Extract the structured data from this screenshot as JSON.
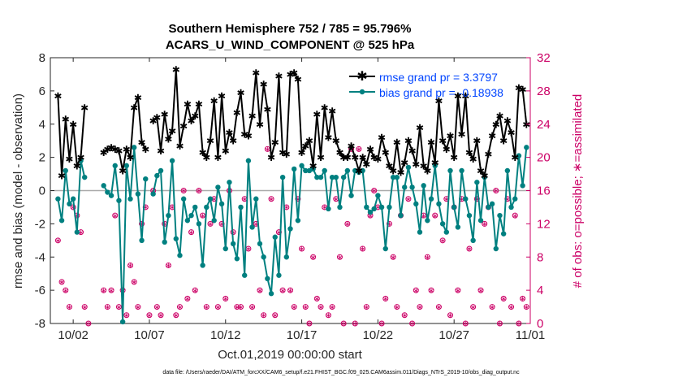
{
  "chart_data": {
    "type": "line",
    "title_line1": "Southern Hemisphere 752 / 785 = 95.796%",
    "title_line2": "ACARS_U_WIND_COMPONENT @ 525 hPa",
    "xlabel": "Oct.01,2019 00:00:00 start",
    "ylabel": "rmse and bias (model - observation)",
    "ylabel_right": "# of obs: o=possible; ∗=assimilated",
    "footnote": "data file: /Users/raeder/DAI/ATM_forcXX/CAM6_setup/f.e21.FHIST_BGC.f09_025.CAM6assim.011/Diags_NTrS_2019-10/obs_diag_output.nc",
    "xlim": [
      0.5,
      32
    ],
    "ylim": [
      -8,
      8
    ],
    "ylim_right": [
      0,
      32
    ],
    "x_ticks": [
      {
        "value": 2,
        "label": "10/02"
      },
      {
        "value": 7,
        "label": "10/07"
      },
      {
        "value": 12,
        "label": "10/12"
      },
      {
        "value": 17,
        "label": "10/17"
      },
      {
        "value": 22,
        "label": "10/22"
      },
      {
        "value": 27,
        "label": "10/27"
      },
      {
        "value": 32,
        "label": "11/01"
      }
    ],
    "y_ticks": [
      -8,
      -6,
      -4,
      -2,
      0,
      2,
      4,
      6,
      8
    ],
    "y_ticks_right": [
      0,
      4,
      8,
      12,
      16,
      20,
      24,
      28,
      32
    ],
    "colors": {
      "rmse": "#000000",
      "bias": "#008080",
      "obs": "#cc0066",
      "zero": "#aaaaaa",
      "legend_text": "#0044ff"
    },
    "series": [
      {
        "name": "rmse",
        "legend": "rmse grand pr = 3.3797",
        "x": [
          1.0,
          1.25,
          1.5,
          1.75,
          2.0,
          2.25,
          2.5,
          2.75,
          4.0,
          4.25,
          4.5,
          4.75,
          5.0,
          5.25,
          5.5,
          5.75,
          6.0,
          6.25,
          6.5,
          6.75,
          7.25,
          7.5,
          7.75,
          8.0,
          8.25,
          8.5,
          8.75,
          9.0,
          9.25,
          9.5,
          9.75,
          10.0,
          10.25,
          10.5,
          10.75,
          11.0,
          11.25,
          11.5,
          11.75,
          12.0,
          12.25,
          12.5,
          12.75,
          13.0,
          13.25,
          13.5,
          13.75,
          14.0,
          14.25,
          14.5,
          14.75,
          15.0,
          15.25,
          15.5,
          15.75,
          16.0,
          16.25,
          16.5,
          16.75,
          17.0,
          17.25,
          17.5,
          17.75,
          18.0,
          18.25,
          18.5,
          18.75,
          19.0,
          19.25,
          19.5,
          19.75,
          20.0,
          20.25,
          20.5,
          20.75,
          21.0,
          21.25,
          21.5,
          21.75,
          22.0,
          22.25,
          22.5,
          22.75,
          23.0,
          23.25,
          23.5,
          23.75,
          24.0,
          24.25,
          24.5,
          24.75,
          25.0,
          25.25,
          25.5,
          25.75,
          26.0,
          26.25,
          26.5,
          26.75,
          27.0,
          27.25,
          27.5,
          27.75,
          28.0,
          28.25,
          28.5,
          28.75,
          29.0,
          29.25,
          29.5,
          29.75,
          30.0,
          30.25,
          30.5,
          30.75,
          31.0,
          31.25,
          31.5,
          31.75
        ],
        "y": [
          5.7,
          0.9,
          4.3,
          1.9,
          4.0,
          1.5,
          2.0,
          5.0,
          2.3,
          2.5,
          2.6,
          2.5,
          2.4,
          1.2,
          2.5,
          2.0,
          5.0,
          5.6,
          2.9,
          2.5,
          4.2,
          4.4,
          2.4,
          4.6,
          3.1,
          3.6,
          7.3,
          2.7,
          3.9,
          5.2,
          4.2,
          4.5,
          5.2,
          2.3,
          2.0,
          3.0,
          5.4,
          2.0,
          5.7,
          2.4,
          3.5,
          3.0,
          4.7,
          5.9,
          3.4,
          3.3,
          4.5,
          7.1,
          4.0,
          6.4,
          4.9,
          2.0,
          2.9,
          6.9,
          2.3,
          2.2,
          7.0,
          7.1,
          6.7,
          2.3,
          2.7,
          3.0,
          1.5,
          4.6,
          2.0,
          5.0,
          3.2,
          4.8,
          3.0,
          2.3,
          2.0,
          2.0,
          2.7,
          2.0,
          1.2,
          2.0,
          1.6,
          2.5,
          2.0,
          1.9,
          3.2,
          2.3,
          1.5,
          1.2,
          2.9,
          1.1,
          1.7,
          3.0,
          2.4,
          1.6,
          3.8,
          1.5,
          1.2,
          2.9,
          1.7,
          5.4,
          3.0,
          2.5,
          3.3,
          2.0,
          5.7,
          3.4,
          5.7,
          2.3,
          1.9,
          3.0,
          1.2,
          0.9,
          2.2,
          3.3,
          4.0,
          4.5,
          3.0,
          4.2,
          3.5,
          2.0,
          6.2,
          6.1,
          4.0
        ]
      },
      {
        "name": "bias",
        "legend": "bias grand pr = -0.18938",
        "x": [
          1.0,
          1.25,
          1.5,
          1.75,
          2.0,
          2.25,
          2.5,
          2.75,
          4.0,
          4.25,
          4.5,
          4.75,
          5.0,
          5.25,
          5.5,
          5.75,
          6.0,
          6.25,
          6.5,
          6.75,
          7.25,
          7.5,
          7.75,
          8.0,
          8.25,
          8.5,
          8.75,
          9.0,
          9.25,
          9.5,
          9.75,
          10.0,
          10.25,
          10.5,
          10.75,
          11.0,
          11.25,
          11.5,
          11.75,
          12.0,
          12.25,
          12.5,
          12.75,
          13.0,
          13.25,
          13.5,
          13.75,
          14.0,
          14.25,
          14.5,
          14.75,
          15.0,
          15.25,
          15.5,
          15.75,
          16.0,
          16.25,
          16.5,
          16.75,
          17.0,
          17.25,
          17.5,
          17.75,
          18.0,
          18.25,
          18.5,
          18.75,
          19.0,
          19.25,
          19.5,
          19.75,
          20.0,
          20.25,
          20.5,
          20.75,
          21.0,
          21.25,
          21.5,
          21.75,
          22.0,
          22.25,
          22.5,
          22.75,
          23.0,
          23.25,
          23.5,
          23.75,
          24.0,
          24.25,
          24.5,
          24.75,
          25.0,
          25.25,
          25.5,
          25.75,
          26.0,
          26.25,
          26.5,
          26.75,
          27.0,
          27.25,
          27.5,
          27.75,
          28.0,
          28.25,
          28.5,
          28.75,
          29.0,
          29.25,
          29.5,
          29.75,
          30.0,
          30.25,
          30.5,
          30.75,
          31.0,
          31.25,
          31.5,
          31.75
        ],
        "y": [
          -0.5,
          -1.8,
          1.2,
          -0.8,
          -0.5,
          -2.5,
          1.8,
          0.8,
          0.3,
          -0.1,
          -0.3,
          1.5,
          -0.6,
          -7.9,
          1.5,
          -0.5,
          2.6,
          -0.2,
          -3.0,
          0.7,
          -0.2,
          0.9,
          1.2,
          -3.1,
          -1.5,
          1.8,
          -2.9,
          -3.9,
          -0.5,
          -1.8,
          -1.5,
          -1.0,
          -2.0,
          -4.5,
          -1.0,
          -0.5,
          -1.8,
          0.2,
          -0.8,
          -3.5,
          0.5,
          -3.2,
          -4.1,
          -1.0,
          -5.1,
          1.8,
          -2.2,
          -0.5,
          -3.2,
          -4.0,
          -5.3,
          -6.2,
          -2.8,
          -5.1,
          0.8,
          -4.0,
          -2.3,
          1.3,
          -1.8,
          1.5,
          1.2,
          1.2,
          1.3,
          0.8,
          0.8,
          1.2,
          -1.1,
          0.8,
          0.8,
          -1.0,
          0.8,
          1.2,
          -0.3,
          1.2,
          1.1,
          1.2,
          -1.0,
          -1.3,
          -1.1,
          -0.3,
          -1.0,
          -3.5,
          -1.0,
          0.8,
          0.8,
          -1.5,
          0.2,
          1.4,
          0.2,
          -0.8,
          -2.5,
          0.3,
          -1.8,
          -0.5,
          1.5,
          -0.8,
          -2.0,
          -2.5,
          1.2,
          -1.0,
          -2.2,
          1.2,
          -0.5,
          -1.5,
          -3.0,
          0.5,
          -1.8,
          0.8,
          -1.0,
          -0.8,
          -3.5,
          -1.5,
          -2.6,
          1.2,
          -1.0,
          -0.5,
          2.1,
          0.3,
          2.6
        ]
      }
    ],
    "obs_possible_x": [
      1.0,
      1.25,
      1.5,
      1.75,
      2.0,
      2.25,
      2.5,
      2.75,
      3.0,
      4.0,
      4.25,
      4.5,
      4.75,
      5.0,
      5.25,
      5.5,
      5.75,
      6.0,
      6.25,
      6.5,
      6.75,
      7.0,
      7.25,
      7.5,
      7.75,
      8.0,
      8.25,
      8.5,
      8.75,
      9.0,
      9.25,
      9.5,
      9.75,
      10.0,
      10.25,
      10.5,
      10.75,
      11.0,
      11.25,
      11.5,
      11.75,
      12.0,
      12.25,
      12.5,
      12.75,
      13.0,
      13.25,
      13.5,
      13.75,
      14.0,
      14.25,
      14.5,
      14.75,
      15.0,
      15.25,
      15.5,
      15.75,
      16.0,
      16.25,
      16.5,
      16.75,
      17.0,
      17.25,
      17.5,
      17.75,
      18.0,
      18.25,
      18.5,
      18.75,
      19.0,
      19.25,
      19.5,
      19.75,
      20.0,
      20.25,
      20.5,
      20.75,
      21.0,
      21.25,
      21.5,
      21.75,
      22.0,
      22.25,
      22.5,
      22.75,
      23.0,
      23.25,
      23.5,
      23.75,
      24.0,
      24.25,
      24.5,
      24.75,
      25.0,
      25.25,
      25.5,
      25.75,
      26.0,
      26.25,
      26.5,
      26.75,
      27.0,
      27.25,
      27.5,
      27.75,
      28.0,
      28.25,
      28.5,
      28.75,
      29.0,
      29.25,
      29.5,
      29.75,
      30.0,
      30.25,
      30.5,
      30.75,
      31.0,
      31.25,
      31.5,
      31.75
    ],
    "obs_possible_y": [
      10,
      5,
      4,
      2,
      14,
      13,
      11,
      2,
      0,
      4,
      2,
      4,
      13,
      2,
      4,
      1,
      7,
      5,
      2,
      12,
      14,
      1,
      16,
      2,
      1,
      12,
      7,
      14,
      1,
      2,
      16,
      3,
      11,
      4,
      16,
      13,
      2,
      12,
      15,
      2,
      12,
      3,
      16,
      11,
      2,
      2,
      15,
      9,
      2,
      12,
      4,
      1,
      21,
      15,
      1,
      11,
      4,
      14,
      4,
      2,
      15,
      9,
      2,
      0,
      8,
      3,
      2,
      14,
      1,
      2,
      15,
      8,
      0,
      12,
      21,
      0,
      21,
      9,
      2,
      13,
      16,
      14,
      0,
      3,
      12,
      8,
      2,
      13,
      1,
      15,
      0,
      4,
      2,
      13,
      8,
      4,
      13,
      2,
      10,
      15,
      1,
      14,
      4,
      15,
      0,
      9,
      2,
      15,
      4,
      12,
      14,
      2,
      16,
      0,
      3,
      15,
      2,
      13,
      0,
      3,
      2
    ]
  }
}
